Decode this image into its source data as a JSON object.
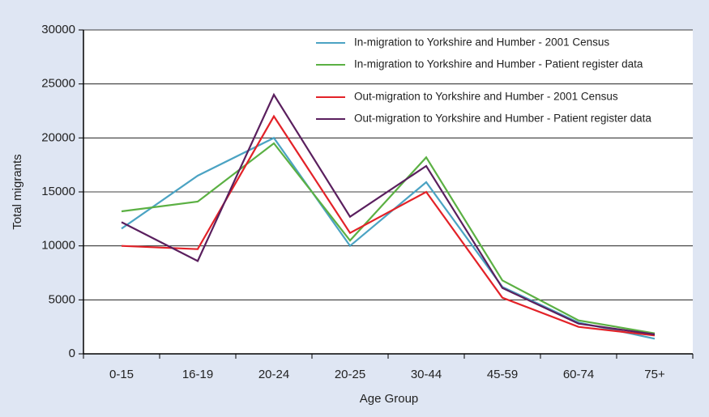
{
  "chart_data": {
    "type": "line",
    "x_label": "Age Group",
    "y_label": "Total migrants",
    "categories": [
      "0-15",
      "16-19",
      "20-24",
      "20-25",
      "30-44",
      "45-59",
      "60-74",
      "75+"
    ],
    "series": [
      {
        "name": "In-migration to Yorkshire and Humber - 2001 Census",
        "color": "#4ba3c3",
        "values": [
          11600,
          16500,
          20000,
          10000,
          15900,
          6200,
          2900,
          1400
        ]
      },
      {
        "name": "In-migration to Yorkshire and Humber - Patient register data",
        "color": "#5bb043",
        "values": [
          13200,
          14100,
          19500,
          10500,
          18200,
          6800,
          3100,
          1900
        ]
      },
      {
        "name": "Out-migration to Yorkshire and Humber - 2001 Census",
        "color": "#e32228",
        "values": [
          10000,
          9700,
          22000,
          11200,
          15000,
          5200,
          2500,
          1700
        ]
      },
      {
        "name": "Out-migration to Yorkshire and Humber - Patient register data",
        "color": "#5a1f5e",
        "values": [
          12200,
          8600,
          24000,
          12700,
          17400,
          6100,
          2800,
          1800
        ]
      }
    ],
    "ylim": [
      0,
      30000
    ],
    "yticks": [
      0,
      5000,
      10000,
      15000,
      20000,
      25000,
      30000
    ],
    "grid": true
  }
}
